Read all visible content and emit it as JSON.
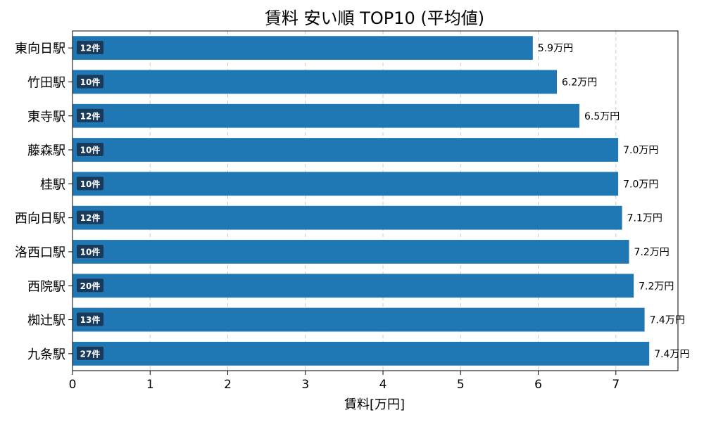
{
  "chart_data": {
    "type": "bar",
    "orientation": "horizontal",
    "title": "賃料 安い順 TOP10 (平均値)",
    "xlabel": "賃料[万円]",
    "ylabel": "",
    "xlim": [
      0,
      7.8
    ],
    "xticks": [
      "0",
      "1",
      "2",
      "3",
      "4",
      "5",
      "6",
      "7"
    ],
    "grid": "x-dashed",
    "bar_color": "#1f77b4",
    "badge_color": "#1a3a5c",
    "categories": [
      "東向日駅",
      "竹田駅",
      "東寺駅",
      "藤森駅",
      "桂駅",
      "西向日駅",
      "洛西口駅",
      "西院駅",
      "椥辻駅",
      "九条駅"
    ],
    "values": [
      5.93,
      6.24,
      6.53,
      7.03,
      7.03,
      7.08,
      7.17,
      7.23,
      7.37,
      7.43
    ],
    "value_labels": [
      "5.9万円",
      "6.2万円",
      "6.5万円",
      "7.0万円",
      "7.0万円",
      "7.1万円",
      "7.2万円",
      "7.2万円",
      "7.4万円",
      "7.4万円"
    ],
    "counts": [
      "12件",
      "10件",
      "12件",
      "10件",
      "10件",
      "12件",
      "10件",
      "20件",
      "13件",
      "27件"
    ]
  }
}
